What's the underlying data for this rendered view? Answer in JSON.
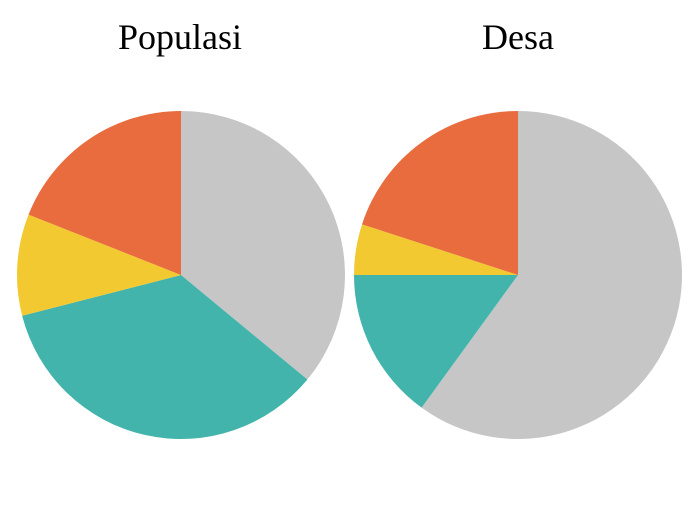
{
  "chart_data": [
    {
      "type": "pie",
      "title": "Populasi",
      "slices": [
        {
          "value": 36,
          "color": "#c6c6c6"
        },
        {
          "value": 35,
          "color": "#42b4ab"
        },
        {
          "value": 10,
          "color": "#f2c931"
        },
        {
          "value": 19,
          "color": "#e96c3e"
        }
      ]
    },
    {
      "type": "pie",
      "title": "Desa",
      "slices": [
        {
          "value": 60,
          "color": "#c6c6c6"
        },
        {
          "value": 15,
          "color": "#42b4ab"
        },
        {
          "value": 5,
          "color": "#f2c931"
        },
        {
          "value": 20,
          "color": "#e96c3e"
        }
      ]
    }
  ]
}
